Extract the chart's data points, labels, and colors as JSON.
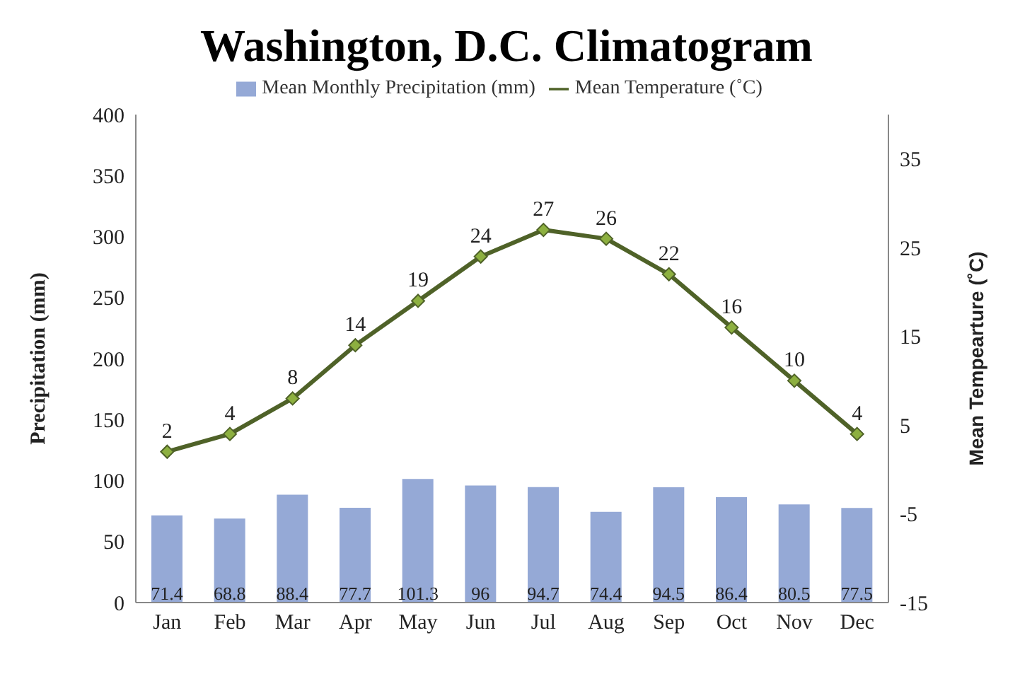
{
  "chart_data": {
    "type": "bar",
    "title": "Washington, D.C. Climatogram",
    "ylabel": "Precipitation (mm)",
    "y2label": "Mean Tempearture (˚C)",
    "categories": [
      "Jan",
      "Feb",
      "Mar",
      "Apr",
      "May",
      "Jun",
      "Jul",
      "Aug",
      "Sep",
      "Oct",
      "Nov",
      "Dec"
    ],
    "series": [
      {
        "name": "Mean Monthly Precipitation (mm)",
        "color": "#95a9d6",
        "values": [
          71.4,
          68.8,
          88.4,
          77.7,
          101.3,
          96,
          94.7,
          74.4,
          94.5,
          86.4,
          80.5,
          77.5
        ]
      },
      {
        "name": "Mean Temperature (˚C)",
        "type": "line",
        "axis": "y2",
        "color": "#4f6228",
        "values": [
          2,
          4,
          8,
          14,
          19,
          24,
          27,
          26,
          22,
          16,
          10,
          4
        ]
      }
    ],
    "ylim": [
      0,
      400
    ],
    "yticks": [
      0,
      50,
      100,
      150,
      200,
      250,
      300,
      350,
      400
    ],
    "y2lim": [
      -15,
      40
    ],
    "y2ticks": [
      -15,
      -5,
      5,
      15,
      25,
      35
    ],
    "data_labels": true,
    "legend": "top",
    "grid": false,
    "marker": "diamond",
    "line_style": "solid"
  }
}
